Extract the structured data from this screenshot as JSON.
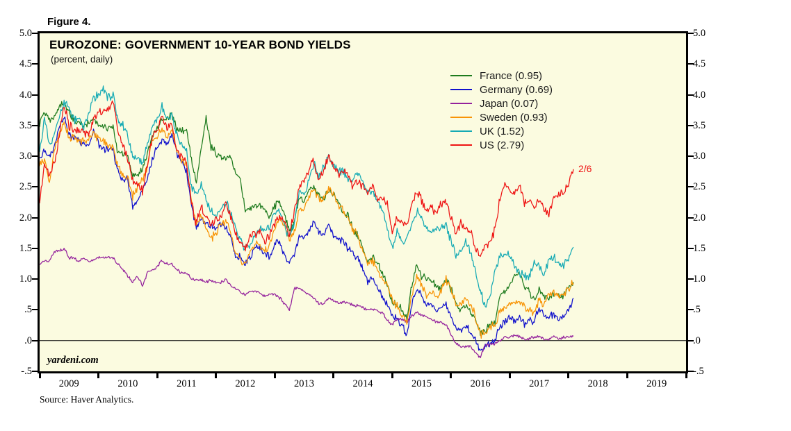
{
  "figure_label": "Figure 4.",
  "chart": {
    "title": "EUROZONE: GOVERNMENT 10-YEAR BOND YIELDS",
    "subtitle": "(percent, daily)",
    "plot_background": "#fbfbe0",
    "frame_color": "#000000",
    "watermark": "yardeni.com",
    "source": "Source: Haver Analytics.",
    "annotation": {
      "text": "2/6",
      "series": "US",
      "color": "#ee1313"
    }
  },
  "chart_data": {
    "type": "line",
    "title": "EUROZONE: GOVERNMENT 10-YEAR BOND YIELDS",
    "subtitle": "(percent, daily)",
    "grid": false,
    "zero_line": true,
    "legend_position": "upper-right-inside",
    "x_axis": {
      "range": [
        2009,
        2020
      ],
      "year_labels": [
        "2009",
        "2010",
        "2011",
        "2012",
        "2013",
        "2014",
        "2015",
        "2016",
        "2017",
        "2018",
        "2019"
      ]
    },
    "y_axis": {
      "range": [
        -0.5,
        5.0
      ],
      "tick_values": [
        5.0,
        4.5,
        4.0,
        3.5,
        3.0,
        2.5,
        2.0,
        1.5,
        1.0,
        0.5,
        0.0,
        -0.5
      ],
      "tick_labels": [
        "5.0",
        "4.5",
        "4.0",
        "3.5",
        "3.0",
        "2.5",
        "2.0",
        "1.5",
        "1.0",
        ".5",
        ".0",
        "-.5"
      ]
    },
    "x_start": 2009.0,
    "x_step_years": 0.08333,
    "series": [
      {
        "name": "France",
        "legend": "France (0.95)",
        "color": "#1e7b1e",
        "last": 0.95,
        "jitter": 0.045,
        "values": [
          3.55,
          3.7,
          3.6,
          3.6,
          3.8,
          3.9,
          3.7,
          3.6,
          3.55,
          3.5,
          3.55,
          3.6,
          3.5,
          3.5,
          3.45,
          3.45,
          3.05,
          3.05,
          3.0,
          2.65,
          2.7,
          2.8,
          3.05,
          3.35,
          3.45,
          3.6,
          3.6,
          3.7,
          3.45,
          3.4,
          3.4,
          2.95,
          2.6,
          3.1,
          3.65,
          3.15,
          3.05,
          3.0,
          2.95,
          3.0,
          2.75,
          2.6,
          2.1,
          2.15,
          2.2,
          2.2,
          2.1,
          2.0,
          2.2,
          2.25,
          2.05,
          1.8,
          1.9,
          2.35,
          2.25,
          2.45,
          2.5,
          2.35,
          2.3,
          2.45,
          2.4,
          2.25,
          2.1,
          2.05,
          1.8,
          1.7,
          1.5,
          1.3,
          1.35,
          1.25,
          1.1,
          0.9,
          0.6,
          0.6,
          0.5,
          0.35,
          0.9,
          1.25,
          1.05,
          1.0,
          1.0,
          0.85,
          0.85,
          1.0,
          0.85,
          0.6,
          0.5,
          0.55,
          0.45,
          0.35,
          0.15,
          0.15,
          0.25,
          0.3,
          0.75,
          0.8,
          0.95,
          1.05,
          1.1,
          0.85,
          0.8,
          0.65,
          0.85,
          0.7,
          0.7,
          0.75,
          0.7,
          0.75,
          0.85,
          0.95
        ]
      },
      {
        "name": "Germany",
        "legend": "Germany (0.69)",
        "color": "#1111cc",
        "last": 0.69,
        "jitter": 0.045,
        "values": [
          2.95,
          3.1,
          3.0,
          3.15,
          3.45,
          3.65,
          3.35,
          3.3,
          3.25,
          3.2,
          3.2,
          3.4,
          3.2,
          3.1,
          3.1,
          3.1,
          2.75,
          2.6,
          2.65,
          2.15,
          2.3,
          2.45,
          2.65,
          2.95,
          3.15,
          3.25,
          3.2,
          3.35,
          3.05,
          2.95,
          2.75,
          2.2,
          1.85,
          2.0,
          1.9,
          1.85,
          1.85,
          1.9,
          1.85,
          1.7,
          1.35,
          1.35,
          1.25,
          1.35,
          1.55,
          1.5,
          1.4,
          1.35,
          1.6,
          1.6,
          1.4,
          1.25,
          1.4,
          1.7,
          1.65,
          1.8,
          1.95,
          1.75,
          1.75,
          1.9,
          1.7,
          1.65,
          1.6,
          1.5,
          1.4,
          1.35,
          1.15,
          0.95,
          1.0,
          0.85,
          0.7,
          0.6,
          0.4,
          0.35,
          0.25,
          0.1,
          0.6,
          0.85,
          0.75,
          0.6,
          0.6,
          0.5,
          0.5,
          0.6,
          0.4,
          0.2,
          0.15,
          0.25,
          0.15,
          0.0,
          -0.15,
          -0.1,
          -0.05,
          0.0,
          0.25,
          0.3,
          0.4,
          0.3,
          0.4,
          0.25,
          0.35,
          0.3,
          0.55,
          0.4,
          0.4,
          0.4,
          0.35,
          0.4,
          0.5,
          0.69
        ]
      },
      {
        "name": "Japan",
        "legend": "Japan (0.07)",
        "color": "#94219c",
        "last": 0.07,
        "jitter": 0.018,
        "values": [
          1.25,
          1.3,
          1.3,
          1.45,
          1.45,
          1.5,
          1.35,
          1.35,
          1.3,
          1.35,
          1.3,
          1.3,
          1.35,
          1.35,
          1.35,
          1.35,
          1.25,
          1.15,
          1.05,
          0.95,
          1.05,
          0.9,
          1.1,
          1.15,
          1.2,
          1.3,
          1.25,
          1.25,
          1.15,
          1.1,
          1.1,
          1.0,
          1.0,
          1.0,
          0.95,
          0.98,
          0.95,
          0.95,
          1.0,
          0.9,
          0.85,
          0.8,
          0.75,
          0.8,
          0.8,
          0.77,
          0.72,
          0.77,
          0.75,
          0.7,
          0.6,
          0.5,
          0.85,
          0.85,
          0.8,
          0.75,
          0.68,
          0.6,
          0.6,
          0.7,
          0.65,
          0.6,
          0.62,
          0.6,
          0.58,
          0.57,
          0.53,
          0.5,
          0.52,
          0.47,
          0.45,
          0.33,
          0.25,
          0.35,
          0.35,
          0.3,
          0.4,
          0.45,
          0.42,
          0.38,
          0.35,
          0.3,
          0.3,
          0.27,
          0.1,
          -0.05,
          -0.1,
          -0.1,
          -0.1,
          -0.2,
          -0.27,
          -0.07,
          -0.07,
          -0.05,
          0.0,
          0.05,
          0.06,
          0.08,
          0.07,
          0.02,
          0.04,
          0.05,
          0.08,
          0.02,
          0.02,
          0.07,
          0.03,
          0.05,
          0.06,
          0.07
        ]
      },
      {
        "name": "Sweden",
        "legend": "Sweden (0.93)",
        "color": "#f89406",
        "last": 0.93,
        "jitter": 0.05,
        "values": [
          2.85,
          2.95,
          2.55,
          3.1,
          3.35,
          3.55,
          3.3,
          3.3,
          3.25,
          3.25,
          3.3,
          3.35,
          3.3,
          3.25,
          3.2,
          3.15,
          2.8,
          2.7,
          2.65,
          2.35,
          2.5,
          2.6,
          2.85,
          3.25,
          3.3,
          3.45,
          3.3,
          3.45,
          3.1,
          2.9,
          2.85,
          2.3,
          1.9,
          2.05,
          1.8,
          1.65,
          1.75,
          1.9,
          1.95,
          1.75,
          1.45,
          1.3,
          1.25,
          1.45,
          1.6,
          1.55,
          1.45,
          1.55,
          1.85,
          2.0,
          1.9,
          1.65,
          1.75,
          2.15,
          2.1,
          2.35,
          2.5,
          2.3,
          2.3,
          2.5,
          2.35,
          2.2,
          2.1,
          2.0,
          1.8,
          1.7,
          1.45,
          1.25,
          1.3,
          1.15,
          1.0,
          0.9,
          0.65,
          0.55,
          0.4,
          0.3,
          0.7,
          1.05,
          0.9,
          0.75,
          0.8,
          0.7,
          0.85,
          1.0,
          0.85,
          0.6,
          0.55,
          0.7,
          0.6,
          0.4,
          0.1,
          0.1,
          0.2,
          0.25,
          0.5,
          0.55,
          0.6,
          0.6,
          0.6,
          0.55,
          0.5,
          0.45,
          0.65,
          0.6,
          0.75,
          0.75,
          0.75,
          0.75,
          0.85,
          0.93
        ]
      },
      {
        "name": "UK",
        "legend": "UK (1.52)",
        "color": "#15aab4",
        "last": 1.52,
        "jitter": 0.05,
        "values": [
          3.05,
          3.6,
          3.2,
          3.35,
          3.65,
          3.85,
          3.8,
          3.6,
          3.6,
          3.45,
          3.7,
          3.95,
          4.0,
          4.1,
          3.95,
          4.0,
          3.6,
          3.5,
          3.35,
          3.0,
          2.95,
          2.9,
          3.2,
          3.45,
          3.6,
          3.8,
          3.6,
          3.65,
          3.35,
          3.2,
          3.1,
          2.5,
          2.4,
          2.55,
          2.3,
          2.1,
          2.0,
          2.15,
          2.25,
          2.1,
          1.85,
          1.65,
          1.5,
          1.55,
          1.75,
          1.85,
          1.8,
          1.85,
          2.1,
          2.1,
          1.85,
          1.7,
          1.9,
          2.45,
          2.35,
          2.6,
          2.9,
          2.7,
          2.8,
          3.0,
          2.85,
          2.75,
          2.75,
          2.65,
          2.65,
          2.75,
          2.6,
          2.4,
          2.45,
          2.25,
          2.1,
          1.85,
          1.5,
          1.8,
          1.6,
          1.65,
          1.9,
          2.1,
          2.0,
          1.8,
          1.75,
          1.8,
          1.85,
          1.9,
          1.6,
          1.4,
          1.45,
          1.6,
          1.45,
          1.1,
          0.8,
          0.55,
          0.75,
          1.1,
          1.4,
          1.4,
          1.4,
          1.2,
          1.1,
          1.05,
          1.05,
          1.25,
          1.2,
          1.05,
          1.35,
          1.35,
          1.25,
          1.2,
          1.35,
          1.52
        ]
      },
      {
        "name": "US",
        "legend": "US (2.79)",
        "color": "#ee1313",
        "last": 2.79,
        "jitter": 0.055,
        "values": [
          2.25,
          2.85,
          2.7,
          2.9,
          3.3,
          3.85,
          3.5,
          3.45,
          3.4,
          3.4,
          3.35,
          3.6,
          3.7,
          3.7,
          3.75,
          3.9,
          3.4,
          3.2,
          2.95,
          2.6,
          2.55,
          2.45,
          2.85,
          3.3,
          3.4,
          3.65,
          3.45,
          3.5,
          3.1,
          3.0,
          2.95,
          2.25,
          1.9,
          2.2,
          2.0,
          1.9,
          1.95,
          2.0,
          2.25,
          2.0,
          1.75,
          1.6,
          1.45,
          1.7,
          1.7,
          1.75,
          1.6,
          1.75,
          1.9,
          2.0,
          1.95,
          1.7,
          2.1,
          2.5,
          2.6,
          2.8,
          2.9,
          2.6,
          2.75,
          3.0,
          2.8,
          2.7,
          2.75,
          2.7,
          2.5,
          2.6,
          2.5,
          2.4,
          2.55,
          2.25,
          2.3,
          2.2,
          1.8,
          2.0,
          1.95,
          1.9,
          2.2,
          2.4,
          2.3,
          2.1,
          2.15,
          2.05,
          2.25,
          2.25,
          2.0,
          1.75,
          1.9,
          1.8,
          1.8,
          1.5,
          1.4,
          1.55,
          1.6,
          1.8,
          2.35,
          2.55,
          2.45,
          2.4,
          2.55,
          2.25,
          2.25,
          2.15,
          2.3,
          2.15,
          2.05,
          2.35,
          2.35,
          2.4,
          2.55,
          2.79
        ]
      }
    ]
  }
}
